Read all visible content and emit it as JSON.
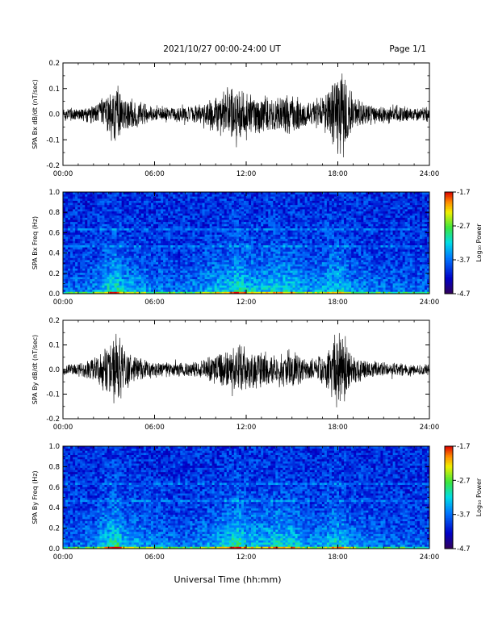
{
  "header": {
    "title": "2021/10/27  00:00-24:00 UT",
    "page": "Page 1/1"
  },
  "xaxis": {
    "label": "Universal Time (hh:mm)",
    "ticks": [
      "00:00",
      "06:00",
      "12:00",
      "18:00",
      "24:00"
    ],
    "range_hours": [
      0,
      24
    ]
  },
  "colorbar": {
    "label": "Log₁₀ Power",
    "ticks": [
      "-1.7",
      "-2.7",
      "-3.7",
      "-4.7"
    ],
    "tick_values": [
      -1.7,
      -2.7,
      -3.7,
      -4.7
    ],
    "range": [
      -4.7,
      -1.7
    ]
  },
  "chart_data": [
    {
      "type": "line",
      "ylabel": "SPA Bx dB/dt (nT/sec)",
      "ylim": [
        -0.2,
        0.2
      ],
      "yticks": [
        "0.2",
        "0.1",
        "0.0",
        "-0.1",
        "-0.2"
      ],
      "ytick_values": [
        0.2,
        0.1,
        0.0,
        -0.1,
        -0.2
      ],
      "envelope": {
        "hours": [
          0,
          1,
          2,
          3,
          3.5,
          4,
          5,
          6,
          7,
          8,
          9,
          10,
          11,
          11.5,
          12,
          13,
          14,
          15,
          16,
          17,
          17.5,
          18,
          18.5,
          19,
          20,
          21,
          22,
          23,
          24
        ],
        "amplitude": [
          0.03,
          0.03,
          0.04,
          0.09,
          0.13,
          0.08,
          0.05,
          0.035,
          0.03,
          0.035,
          0.04,
          0.08,
          0.12,
          0.14,
          0.1,
          0.08,
          0.07,
          0.09,
          0.06,
          0.07,
          0.12,
          0.2,
          0.15,
          0.07,
          0.05,
          0.04,
          0.04,
          0.03,
          0.03
        ]
      }
    },
    {
      "type": "heatmap",
      "ylabel": "SPA Bx Freq (Hz)",
      "ylim": [
        0.0,
        1.0
      ],
      "yticks": [
        "1.0",
        "0.8",
        "0.6",
        "0.4",
        "0.2",
        "0.0"
      ],
      "ytick_values": [
        1.0,
        0.8,
        0.6,
        0.4,
        0.2,
        0.0
      ],
      "zlim": [
        -4.7,
        -1.7
      ],
      "activity": {
        "hours": [
          0,
          2,
          3,
          3.5,
          4,
          6,
          8,
          10,
          11,
          11.5,
          12,
          13,
          14,
          15,
          16,
          17,
          18,
          19,
          21,
          24
        ],
        "level": [
          0.2,
          0.3,
          0.6,
          0.7,
          0.5,
          0.3,
          0.25,
          0.45,
          0.6,
          0.7,
          0.55,
          0.5,
          0.6,
          0.55,
          0.35,
          0.45,
          0.6,
          0.35,
          0.25,
          0.2
        ]
      }
    },
    {
      "type": "line",
      "ylabel": "SPA By dB/dt (nT/sec)",
      "ylim": [
        -0.2,
        0.2
      ],
      "yticks": [
        "0.2",
        "0.1",
        "0.0",
        "-0.1",
        "-0.2"
      ],
      "ytick_values": [
        0.2,
        0.1,
        0.0,
        -0.1,
        -0.2
      ],
      "envelope": {
        "hours": [
          0,
          1,
          2,
          3,
          3.5,
          4,
          5,
          6,
          7,
          8,
          9,
          10,
          11,
          11.5,
          12,
          13,
          14,
          15,
          16,
          17,
          17.5,
          18,
          18.5,
          19,
          20,
          21,
          22,
          23,
          24
        ],
        "amplitude": [
          0.025,
          0.03,
          0.05,
          0.12,
          0.18,
          0.09,
          0.05,
          0.035,
          0.03,
          0.035,
          0.04,
          0.07,
          0.1,
          0.12,
          0.09,
          0.08,
          0.07,
          0.09,
          0.05,
          0.06,
          0.11,
          0.2,
          0.14,
          0.06,
          0.04,
          0.035,
          0.03,
          0.025,
          0.025
        ]
      }
    },
    {
      "type": "heatmap",
      "ylabel": "SPA By Freq (Hz)",
      "ylim": [
        0.0,
        1.0
      ],
      "yticks": [
        "1.0",
        "0.8",
        "0.6",
        "0.4",
        "0.2",
        "0.0"
      ],
      "ytick_values": [
        1.0,
        0.8,
        0.6,
        0.4,
        0.2,
        0.0
      ],
      "zlim": [
        -4.7,
        -1.7
      ],
      "activity": {
        "hours": [
          0,
          2,
          3,
          3.5,
          4,
          6,
          8,
          10,
          11,
          11.5,
          12,
          13,
          14,
          15,
          16,
          17,
          18,
          19,
          21,
          24
        ],
        "level": [
          0.2,
          0.3,
          0.65,
          0.75,
          0.5,
          0.3,
          0.25,
          0.45,
          0.65,
          0.75,
          0.55,
          0.5,
          0.6,
          0.6,
          0.35,
          0.4,
          0.6,
          0.35,
          0.25,
          0.2
        ]
      }
    }
  ]
}
